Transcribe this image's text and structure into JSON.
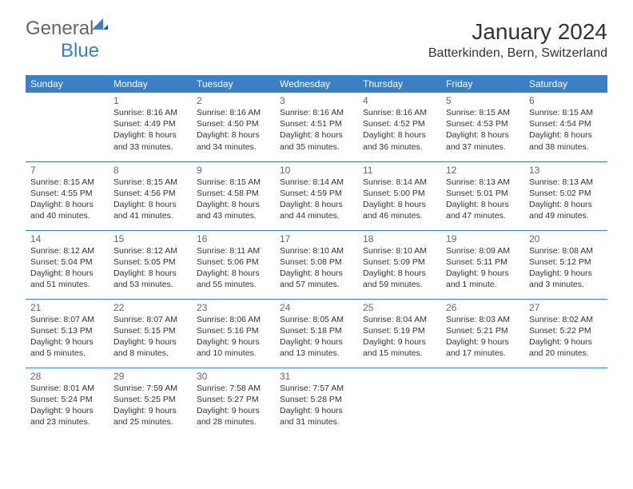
{
  "logo": {
    "text1": "General",
    "text2": "Blue",
    "icon_color": "#3b7fc4"
  },
  "header": {
    "month_year": "January 2024",
    "location": "Batterkinden, Bern, Switzerland"
  },
  "colors": {
    "header_bg": "#3b7fc4",
    "header_text": "#ffffff",
    "divider": "#3b7fc4",
    "text": "#333333",
    "daynum": "#666666"
  },
  "weekdays": [
    "Sunday",
    "Monday",
    "Tuesday",
    "Wednesday",
    "Thursday",
    "Friday",
    "Saturday"
  ],
  "weeks": [
    [
      {
        "num": "",
        "sunrise": "",
        "sunset": "",
        "daylight": ""
      },
      {
        "num": "1",
        "sunrise": "Sunrise: 8:16 AM",
        "sunset": "Sunset: 4:49 PM",
        "daylight": "Daylight: 8 hours and 33 minutes."
      },
      {
        "num": "2",
        "sunrise": "Sunrise: 8:16 AM",
        "sunset": "Sunset: 4:50 PM",
        "daylight": "Daylight: 8 hours and 34 minutes."
      },
      {
        "num": "3",
        "sunrise": "Sunrise: 8:16 AM",
        "sunset": "Sunset: 4:51 PM",
        "daylight": "Daylight: 8 hours and 35 minutes."
      },
      {
        "num": "4",
        "sunrise": "Sunrise: 8:16 AM",
        "sunset": "Sunset: 4:52 PM",
        "daylight": "Daylight: 8 hours and 36 minutes."
      },
      {
        "num": "5",
        "sunrise": "Sunrise: 8:15 AM",
        "sunset": "Sunset: 4:53 PM",
        "daylight": "Daylight: 8 hours and 37 minutes."
      },
      {
        "num": "6",
        "sunrise": "Sunrise: 8:15 AM",
        "sunset": "Sunset: 4:54 PM",
        "daylight": "Daylight: 8 hours and 38 minutes."
      }
    ],
    [
      {
        "num": "7",
        "sunrise": "Sunrise: 8:15 AM",
        "sunset": "Sunset: 4:55 PM",
        "daylight": "Daylight: 8 hours and 40 minutes."
      },
      {
        "num": "8",
        "sunrise": "Sunrise: 8:15 AM",
        "sunset": "Sunset: 4:56 PM",
        "daylight": "Daylight: 8 hours and 41 minutes."
      },
      {
        "num": "9",
        "sunrise": "Sunrise: 8:15 AM",
        "sunset": "Sunset: 4:58 PM",
        "daylight": "Daylight: 8 hours and 43 minutes."
      },
      {
        "num": "10",
        "sunrise": "Sunrise: 8:14 AM",
        "sunset": "Sunset: 4:59 PM",
        "daylight": "Daylight: 8 hours and 44 minutes."
      },
      {
        "num": "11",
        "sunrise": "Sunrise: 8:14 AM",
        "sunset": "Sunset: 5:00 PM",
        "daylight": "Daylight: 8 hours and 46 minutes."
      },
      {
        "num": "12",
        "sunrise": "Sunrise: 8:13 AM",
        "sunset": "Sunset: 5:01 PM",
        "daylight": "Daylight: 8 hours and 47 minutes."
      },
      {
        "num": "13",
        "sunrise": "Sunrise: 8:13 AM",
        "sunset": "Sunset: 5:02 PM",
        "daylight": "Daylight: 8 hours and 49 minutes."
      }
    ],
    [
      {
        "num": "14",
        "sunrise": "Sunrise: 8:12 AM",
        "sunset": "Sunset: 5:04 PM",
        "daylight": "Daylight: 8 hours and 51 minutes."
      },
      {
        "num": "15",
        "sunrise": "Sunrise: 8:12 AM",
        "sunset": "Sunset: 5:05 PM",
        "daylight": "Daylight: 8 hours and 53 minutes."
      },
      {
        "num": "16",
        "sunrise": "Sunrise: 8:11 AM",
        "sunset": "Sunset: 5:06 PM",
        "daylight": "Daylight: 8 hours and 55 minutes."
      },
      {
        "num": "17",
        "sunrise": "Sunrise: 8:10 AM",
        "sunset": "Sunset: 5:08 PM",
        "daylight": "Daylight: 8 hours and 57 minutes."
      },
      {
        "num": "18",
        "sunrise": "Sunrise: 8:10 AM",
        "sunset": "Sunset: 5:09 PM",
        "daylight": "Daylight: 8 hours and 59 minutes."
      },
      {
        "num": "19",
        "sunrise": "Sunrise: 8:09 AM",
        "sunset": "Sunset: 5:11 PM",
        "daylight": "Daylight: 9 hours and 1 minute."
      },
      {
        "num": "20",
        "sunrise": "Sunrise: 8:08 AM",
        "sunset": "Sunset: 5:12 PM",
        "daylight": "Daylight: 9 hours and 3 minutes."
      }
    ],
    [
      {
        "num": "21",
        "sunrise": "Sunrise: 8:07 AM",
        "sunset": "Sunset: 5:13 PM",
        "daylight": "Daylight: 9 hours and 5 minutes."
      },
      {
        "num": "22",
        "sunrise": "Sunrise: 8:07 AM",
        "sunset": "Sunset: 5:15 PM",
        "daylight": "Daylight: 9 hours and 8 minutes."
      },
      {
        "num": "23",
        "sunrise": "Sunrise: 8:06 AM",
        "sunset": "Sunset: 5:16 PM",
        "daylight": "Daylight: 9 hours and 10 minutes."
      },
      {
        "num": "24",
        "sunrise": "Sunrise: 8:05 AM",
        "sunset": "Sunset: 5:18 PM",
        "daylight": "Daylight: 9 hours and 13 minutes."
      },
      {
        "num": "25",
        "sunrise": "Sunrise: 8:04 AM",
        "sunset": "Sunset: 5:19 PM",
        "daylight": "Daylight: 9 hours and 15 minutes."
      },
      {
        "num": "26",
        "sunrise": "Sunrise: 8:03 AM",
        "sunset": "Sunset: 5:21 PM",
        "daylight": "Daylight: 9 hours and 17 minutes."
      },
      {
        "num": "27",
        "sunrise": "Sunrise: 8:02 AM",
        "sunset": "Sunset: 5:22 PM",
        "daylight": "Daylight: 9 hours and 20 minutes."
      }
    ],
    [
      {
        "num": "28",
        "sunrise": "Sunrise: 8:01 AM",
        "sunset": "Sunset: 5:24 PM",
        "daylight": "Daylight: 9 hours and 23 minutes."
      },
      {
        "num": "29",
        "sunrise": "Sunrise: 7:59 AM",
        "sunset": "Sunset: 5:25 PM",
        "daylight": "Daylight: 9 hours and 25 minutes."
      },
      {
        "num": "30",
        "sunrise": "Sunrise: 7:58 AM",
        "sunset": "Sunset: 5:27 PM",
        "daylight": "Daylight: 9 hours and 28 minutes."
      },
      {
        "num": "31",
        "sunrise": "Sunrise: 7:57 AM",
        "sunset": "Sunset: 5:28 PM",
        "daylight": "Daylight: 9 hours and 31 minutes."
      },
      {
        "num": "",
        "sunrise": "",
        "sunset": "",
        "daylight": ""
      },
      {
        "num": "",
        "sunrise": "",
        "sunset": "",
        "daylight": ""
      },
      {
        "num": "",
        "sunrise": "",
        "sunset": "",
        "daylight": ""
      }
    ]
  ]
}
